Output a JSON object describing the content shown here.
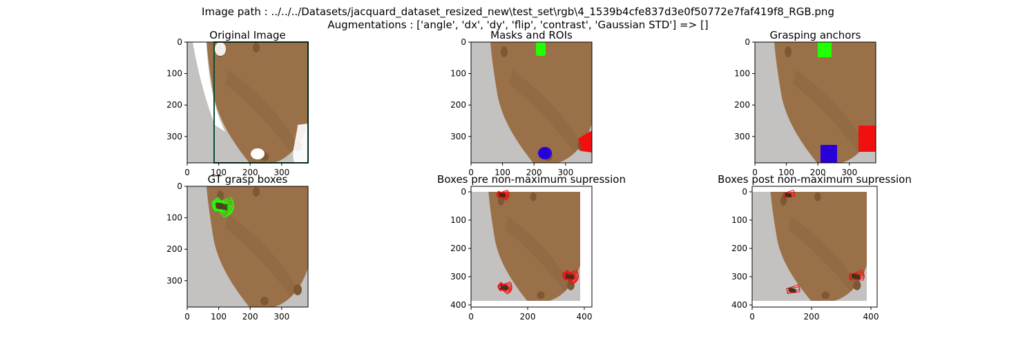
{
  "suptitle": {
    "line1": "Image path : ../../../Datasets/jacquard_dataset_resized_new\\test_set\\rgb\\4_1539b4cfe837d3e0f50772e7faf419f8_RGB.png",
    "line2": "Augmentations : ['angle', 'dx', 'dy', 'flip', 'contrast', 'Gaussian STD'] => []"
  },
  "colors": {
    "background": "#c3c2c1",
    "wood": "#9a7048",
    "wood_dark": "#7c5834",
    "grasp_green": "#22ff00",
    "roi_blue": "#2a00d8",
    "roi_red": "#f01010",
    "frame_green": "#0b4d2f"
  },
  "panels": [
    {
      "id": "original-image",
      "title": "Original Image",
      "xticks": [
        "0",
        "100",
        "200",
        "300"
      ],
      "yticks": [
        "0",
        "100",
        "200",
        "300"
      ]
    },
    {
      "id": "masks-and-rois",
      "title": "Masks and ROIs",
      "xticks": [
        "0",
        "100",
        "200",
        "300"
      ],
      "yticks": [
        "0",
        "100",
        "200",
        "300"
      ]
    },
    {
      "id": "grasping-anchors",
      "title": "Grasping anchors",
      "xticks": [
        "0",
        "100",
        "200",
        "300"
      ],
      "yticks": [
        "0",
        "100",
        "200",
        "300"
      ]
    },
    {
      "id": "gt-grasp-boxes",
      "title": "GT grasp boxes",
      "xticks": [
        "0",
        "100",
        "200",
        "300"
      ],
      "yticks": [
        "0",
        "100",
        "200",
        "300"
      ]
    },
    {
      "id": "boxes-pre-nms",
      "title": "Boxes pre non-maximum supression",
      "xticks": [
        "0",
        "200",
        "400"
      ],
      "yticks": [
        "0",
        "100",
        "200",
        "300",
        "400"
      ]
    },
    {
      "id": "boxes-post-nms",
      "title": "Boxes post non-maximum supression",
      "xticks": [
        "0",
        "200",
        "400"
      ],
      "yticks": [
        "0",
        "100",
        "200",
        "300",
        "400"
      ]
    }
  ]
}
